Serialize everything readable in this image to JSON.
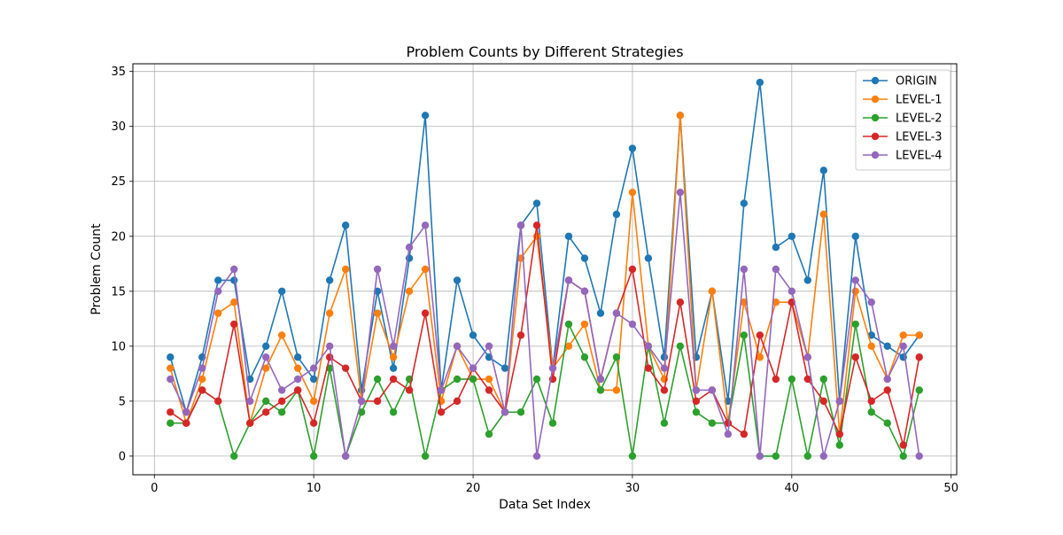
{
  "chart_data": {
    "type": "line",
    "title": "Problem Counts by Different Strategies",
    "xlabel": "Data Set Index",
    "ylabel": "Problem Count",
    "xlim": [
      -1.35,
      50.35
    ],
    "ylim": [
      -1.7,
      35.7
    ],
    "xticks": [
      0,
      10,
      20,
      30,
      40,
      50
    ],
    "yticks": [
      0,
      5,
      10,
      15,
      20,
      25,
      30,
      35
    ],
    "grid": true,
    "legend_position": "top-right",
    "x": [
      1,
      2,
      3,
      4,
      5,
      6,
      7,
      8,
      9,
      10,
      11,
      12,
      13,
      14,
      15,
      16,
      17,
      18,
      19,
      20,
      21,
      22,
      23,
      24,
      25,
      26,
      27,
      28,
      29,
      30,
      31,
      32,
      33,
      34,
      35,
      36,
      37,
      38,
      39,
      40,
      41,
      42,
      43,
      44,
      45,
      46,
      47,
      48
    ],
    "series": [
      {
        "name": "ORIGIN",
        "color": "#1f77b4",
        "values": [
          9,
          4,
          9,
          16,
          16,
          7,
          10,
          15,
          9,
          7,
          16,
          21,
          6,
          15,
          8,
          18,
          31,
          6,
          16,
          11,
          9,
          8,
          21,
          23,
          8,
          20,
          18,
          13,
          22,
          28,
          18,
          9,
          31,
          9,
          15,
          5,
          23,
          34,
          19,
          20,
          16,
          26,
          5,
          20,
          11,
          10,
          9,
          11
        ]
      },
      {
        "name": "LEVEL-1",
        "color": "#ff7f0e",
        "values": [
          8,
          3,
          7,
          13,
          14,
          3,
          8,
          11,
          8,
          5,
          13,
          17,
          5,
          13,
          9,
          15,
          17,
          5,
          10,
          7,
          7,
          4,
          18,
          20,
          8,
          10,
          12,
          6,
          6,
          24,
          10,
          7,
          31,
          6,
          15,
          3,
          14,
          9,
          14,
          14,
          9,
          22,
          2,
          15,
          10,
          7,
          11,
          11
        ]
      },
      {
        "name": "LEVEL-2",
        "color": "#2ca02c",
        "values": [
          3,
          3,
          6,
          5,
          0,
          3,
          5,
          4,
          6,
          0,
          8,
          0,
          4,
          7,
          4,
          7,
          0,
          6,
          7,
          7,
          2,
          4,
          4,
          7,
          3,
          12,
          9,
          6,
          9,
          0,
          10,
          3,
          10,
          4,
          3,
          3,
          11,
          0,
          0,
          7,
          0,
          7,
          1,
          12,
          4,
          3,
          0,
          6
        ]
      },
      {
        "name": "LEVEL-3",
        "color": "#d62728",
        "values": [
          4,
          3,
          6,
          5,
          12,
          3,
          4,
          5,
          6,
          3,
          9,
          8,
          5,
          5,
          7,
          6,
          13,
          4,
          5,
          8,
          6,
          4,
          11,
          21,
          7,
          16,
          15,
          7,
          13,
          17,
          8,
          6,
          14,
          5,
          6,
          3,
          2,
          11,
          7,
          14,
          7,
          5,
          2,
          9,
          5,
          6,
          1,
          9
        ]
      },
      {
        "name": "LEVEL-4",
        "color": "#9467bd",
        "values": [
          7,
          4,
          8,
          15,
          17,
          5,
          9,
          6,
          7,
          8,
          10,
          0,
          5,
          17,
          10,
          19,
          21,
          6,
          10,
          8,
          10,
          4,
          21,
          0,
          8,
          16,
          15,
          7,
          13,
          12,
          10,
          8,
          24,
          6,
          6,
          2,
          17,
          0,
          17,
          15,
          9,
          0,
          5,
          16,
          14,
          7,
          10,
          0
        ]
      }
    ]
  }
}
